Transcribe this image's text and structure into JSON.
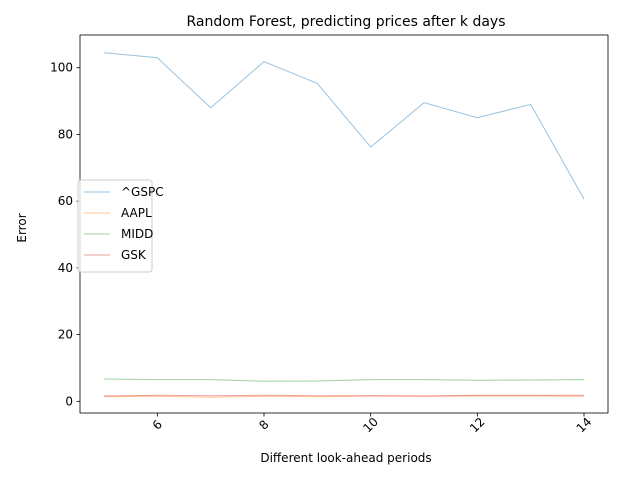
{
  "chart_data": {
    "type": "line",
    "title": "Random Forest, predicting prices after k days",
    "xlabel": "Different look-ahead periods",
    "ylabel": "Error",
    "xlim": [
      4.55,
      14.45
    ],
    "ylim": [
      -3.5,
      109.8
    ],
    "xticks": [
      6,
      8,
      10,
      12,
      14
    ],
    "yticks": [
      0,
      20,
      40,
      60,
      80,
      100
    ],
    "x": [
      5,
      6,
      7,
      8,
      9,
      10,
      11,
      12,
      13,
      14
    ],
    "series": [
      {
        "name": "^GSPC",
        "color": "#1f77b4",
        "values": [
          104.5,
          103.0,
          88.0,
          101.8,
          95.3,
          76.2,
          89.5,
          85.0,
          89.0,
          60.6
        ]
      },
      {
        "name": "AAPL",
        "color": "#ff7f0e",
        "values": [
          1.4,
          1.5,
          1.2,
          1.5,
          1.4,
          1.6,
          1.5,
          1.6,
          1.6,
          1.5
        ]
      },
      {
        "name": "MIDD",
        "color": "#2ca02c",
        "values": [
          6.7,
          6.5,
          6.5,
          6.0,
          6.1,
          6.5,
          6.5,
          6.3,
          6.4,
          6.5
        ]
      },
      {
        "name": "GSK",
        "color": "#d62728",
        "values": [
          1.6,
          1.8,
          1.7,
          1.8,
          1.7,
          1.7,
          1.6,
          1.8,
          1.8,
          1.8
        ]
      }
    ],
    "grid": false,
    "legend_position": "center-left"
  }
}
